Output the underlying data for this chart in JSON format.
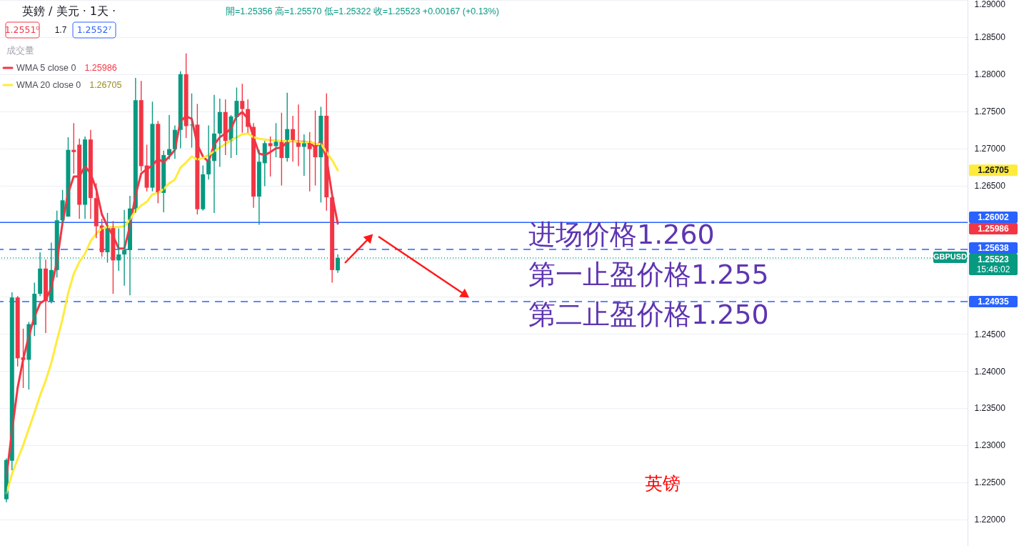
{
  "chart_data": {
    "type": "candlestick",
    "title": "英鎊 / 美元 · 1天 ·",
    "subtitle": "開=1.25356 高=1.25570 低=1.25322 收=1.25523 +0.00167 (+0.13%)",
    "categories": [
      null,
      null,
      null,
      null,
      null,
      null,
      null,
      null,
      null,
      null,
      null,
      null,
      null,
      null,
      null,
      null,
      null,
      null,
      null,
      null,
      null,
      null,
      null,
      null,
      null,
      null,
      null,
      null,
      null,
      null,
      null,
      null,
      null,
      null,
      null,
      null,
      null,
      null,
      null,
      null,
      null,
      null,
      null,
      null,
      null,
      null,
      null,
      null,
      null,
      null,
      null,
      null,
      null,
      null,
      null,
      null,
      null,
      null,
      null,
      null,
      null,
      null,
      null,
      null,
      null,
      null,
      null,
      null,
      null,
      null,
      null,
      null,
      null,
      null,
      null,
      null,
      null,
      null,
      null,
      null,
      null,
      null,
      null,
      null,
      null,
      null,
      null,
      null,
      null,
      null,
      null,
      null,
      null,
      null,
      null,
      null,
      null,
      null,
      null,
      null,
      null,
      null,
      null,
      null,
      null,
      null,
      null,
      null,
      null,
      null,
      null,
      null,
      null,
      null,
      null,
      null,
      null,
      null,
      null,
      null,
      null,
      null,
      null,
      null,
      null,
      null,
      null,
      null,
      null,
      null,
      null,
      null,
      null,
      null,
      null,
      null,
      null,
      null,
      null,
      null,
      null,
      null,
      null,
      null,
      null,
      null,
      null,
      null,
      null,
      null,
      null,
      null,
      null,
      null,
      null,
      null,
      null,
      null,
      null,
      null,
      null,
      null,
      null,
      null,
      null,
      null,
      null,
      null,
      null,
      null,
      null
    ],
    "ohlc": [
      [
        1.2227,
        1.2282,
        1.2223,
        1.228
      ],
      [
        1.2279,
        1.2506,
        1.2266,
        1.2499
      ],
      [
        1.2499,
        1.2501,
        1.2406,
        1.2417
      ],
      [
        1.2418,
        1.2457,
        1.2377,
        1.2415
      ],
      [
        1.2415,
        1.2466,
        1.2375,
        1.2463
      ],
      [
        1.2462,
        1.2519,
        1.2447,
        1.2504
      ],
      [
        1.2504,
        1.256,
        1.2501,
        1.2538
      ],
      [
        1.2538,
        1.255,
        1.2451,
        1.2494
      ],
      [
        1.2494,
        1.2573,
        1.2491,
        1.2536
      ],
      [
        1.2536,
        1.2616,
        1.2526,
        1.2603
      ],
      [
        1.2603,
        1.2644,
        1.26,
        1.263
      ],
      [
        1.2608,
        1.2715,
        1.2608,
        1.2698
      ],
      [
        1.2698,
        1.2734,
        1.2666,
        1.2695
      ],
      [
        1.2705,
        1.2713,
        1.2605,
        1.2624
      ],
      [
        1.2624,
        1.2716,
        1.2605,
        1.2712
      ],
      [
        1.2712,
        1.2725,
        1.2605,
        1.2633
      ],
      [
        1.2633,
        1.2653,
        1.2579,
        1.2595
      ],
      [
        1.2596,
        1.2605,
        1.2554,
        1.256
      ],
      [
        1.256,
        1.2613,
        1.2546,
        1.2594
      ],
      [
        1.2593,
        1.2602,
        1.2504,
        1.2549
      ],
      [
        1.2549,
        1.2592,
        1.2535,
        1.2557
      ],
      [
        1.2557,
        1.2617,
        1.2515,
        1.2563
      ],
      [
        1.2563,
        1.2636,
        1.2502,
        1.2619
      ],
      [
        1.2618,
        1.2795,
        1.2613,
        1.2765
      ],
      [
        1.2765,
        1.2791,
        1.2669,
        1.2676
      ],
      [
        1.2677,
        1.2705,
        1.2642,
        1.2647
      ],
      [
        1.2647,
        1.2763,
        1.2642,
        1.2733
      ],
      [
        1.2733,
        1.2737,
        1.2626,
        1.264
      ],
      [
        1.264,
        1.2697,
        1.2614,
        1.2691
      ],
      [
        1.2691,
        1.2745,
        1.2685,
        1.2699
      ],
      [
        1.2699,
        1.2731,
        1.2686,
        1.2725
      ],
      [
        1.2725,
        1.2804,
        1.27,
        1.28
      ],
      [
        1.28,
        1.2828,
        1.2714,
        1.273
      ],
      [
        1.2731,
        1.2774,
        1.2701,
        1.2732
      ],
      [
        1.2732,
        1.276,
        1.2611,
        1.2618
      ],
      [
        1.2618,
        1.2677,
        1.2616,
        1.2665
      ],
      [
        1.2665,
        1.2731,
        1.2658,
        1.2684
      ],
      [
        1.2683,
        1.2772,
        1.2613,
        1.272
      ],
      [
        1.272,
        1.2767,
        1.2675,
        1.2749
      ],
      [
        1.2749,
        1.2766,
        1.2691,
        1.271
      ],
      [
        1.271,
        1.2745,
        1.2687,
        1.2743
      ],
      [
        1.2742,
        1.2782,
        1.2691,
        1.2764
      ],
      [
        1.2764,
        1.2787,
        1.2721,
        1.2753
      ],
      [
        1.2753,
        1.2766,
        1.2721,
        1.2729
      ],
      [
        1.2729,
        1.2734,
        1.262,
        1.2635
      ],
      [
        1.2635,
        1.2698,
        1.2597,
        1.2682
      ],
      [
        1.268,
        1.271,
        1.2649,
        1.2707
      ],
      [
        1.2707,
        1.2716,
        1.2662,
        1.2703
      ],
      [
        1.2703,
        1.2734,
        1.2688,
        1.2709
      ],
      [
        1.2709,
        1.2748,
        1.265,
        1.2687
      ],
      [
        1.2687,
        1.2775,
        1.2682,
        1.2726
      ],
      [
        1.2726,
        1.2744,
        1.2682,
        1.2709
      ],
      [
        1.271,
        1.2759,
        1.2676,
        1.2702
      ],
      [
        1.2702,
        1.2719,
        1.2663,
        1.271
      ],
      [
        1.271,
        1.2722,
        1.2642,
        1.2699
      ],
      [
        1.2704,
        1.2751,
        1.265,
        1.2688
      ],
      [
        1.2688,
        1.2756,
        1.2627,
        1.2744
      ],
      [
        1.2744,
        1.2774,
        1.2616,
        1.2634
      ],
      [
        1.2634,
        1.2635,
        1.2519,
        1.2536
      ],
      [
        1.25356,
        1.2557,
        1.25322,
        1.25523
      ],
      null,
      null,
      null,
      null,
      null,
      null,
      null,
      null,
      null,
      null,
      null,
      null,
      null,
      null,
      null,
      null,
      null,
      null,
      null,
      null,
      null,
      null,
      null,
      null,
      null,
      null,
      null,
      null,
      null,
      null,
      null,
      null,
      null,
      null,
      null,
      null,
      null,
      null,
      null,
      null,
      null,
      null,
      null,
      null,
      null,
      null,
      null,
      null,
      null,
      null,
      null,
      null,
      null,
      null,
      null,
      null,
      null,
      null,
      null,
      null,
      null,
      null,
      null,
      null,
      null,
      null,
      null,
      null,
      null,
      null,
      null,
      null,
      null,
      null,
      null,
      null,
      null,
      null,
      null,
      null,
      null,
      null,
      null,
      null,
      null,
      null,
      null,
      null,
      null,
      null,
      null,
      null,
      null,
      null,
      null,
      null,
      null,
      null,
      null,
      null,
      null,
      null,
      null,
      null,
      null,
      null,
      null,
      null,
      null,
      null,
      null
    ],
    "colors": [
      "#089981",
      "#089981",
      "#f23645",
      "#f23645",
      "#089981",
      "#089981",
      "#089981",
      "#f23645",
      "#089981",
      "#089981",
      "#089981",
      "#089981",
      "#f23645",
      "#f23645",
      "#089981",
      "#f23645",
      "#f23645",
      "#f23645",
      "#089981",
      "#f23645",
      "#089981",
      "#089981",
      "#089981",
      "#089981",
      "#f23645",
      "#f23645",
      "#089981",
      "#f23645",
      "#089981",
      "#089981",
      "#089981",
      "#089981",
      "#f23645",
      "#089981",
      "#f23645",
      "#089981",
      "#089981",
      "#089981",
      "#089981",
      "#f23645",
      "#089981",
      "#089981",
      "#f23645",
      "#f23645",
      "#f23645",
      "#089981",
      "#089981",
      "#f23645",
      "#089981",
      "#f23645",
      "#089981",
      "#f23645",
      "#f23645",
      "#089981",
      "#f23645",
      "#f23645",
      "#089981",
      "#f23645",
      "#f23645",
      "#089981",
      null,
      null,
      null,
      null,
      null,
      null,
      null,
      null,
      null,
      null,
      null,
      null,
      null,
      null,
      null,
      null,
      null,
      null,
      null,
      null,
      null,
      null,
      null,
      null,
      null,
      null,
      null,
      null,
      null,
      null,
      null,
      null,
      null,
      null,
      null,
      null,
      null,
      null,
      null,
      null,
      null,
      null,
      null,
      null,
      null,
      null,
      null,
      null,
      null,
      null,
      null,
      null,
      null,
      null,
      null,
      null,
      null,
      null,
      null,
      null,
      null,
      null,
      null,
      null,
      null,
      null,
      null,
      null,
      null,
      null,
      null,
      null,
      null,
      null,
      null,
      null,
      null,
      null,
      null,
      null,
      null,
      null,
      null,
      null,
      null,
      null,
      null,
      null,
      null,
      null,
      null,
      null,
      null,
      null,
      null,
      null,
      null,
      null,
      null,
      null,
      null,
      null,
      null,
      null,
      null,
      null,
      null,
      null,
      null,
      null,
      null
    ],
    "series": [
      {
        "name": "WMA 5 close 0",
        "type": "line",
        "color": "#f23645",
        "values": [
          1.2257,
          1.2319,
          1.2377,
          1.2416,
          1.2447,
          1.2473,
          1.2491,
          1.2496,
          1.2512,
          1.2547,
          1.26,
          1.264,
          1.2662,
          1.2662,
          1.2676,
          1.2666,
          1.2645,
          1.2611,
          1.2595,
          1.2582,
          1.2565,
          1.2565,
          1.2595,
          1.2637,
          1.2666,
          1.2672,
          1.2677,
          1.2686,
          1.2681,
          1.2689,
          1.2698,
          1.2737,
          1.2743,
          1.274,
          1.2705,
          1.2689,
          1.2682,
          1.2705,
          1.2715,
          1.272,
          1.2727,
          1.2743,
          1.2749,
          1.274,
          1.2715,
          1.2693,
          1.2691,
          1.2695,
          1.27,
          1.2701,
          1.2709,
          1.271,
          1.2709,
          1.2709,
          1.2708,
          1.2701,
          1.271,
          1.2686,
          1.2637,
          1.25986,
          null,
          null,
          null,
          null,
          null,
          null,
          null,
          null,
          null,
          null,
          null,
          null,
          null,
          null,
          null,
          null,
          null,
          null,
          null,
          null,
          null,
          null,
          null,
          null,
          null,
          null,
          null,
          null,
          null,
          null,
          null,
          null,
          null,
          null,
          null,
          null,
          null,
          null,
          null,
          null,
          null,
          null,
          null,
          null,
          null,
          null,
          null,
          null,
          null,
          null,
          null,
          null,
          null,
          null,
          null,
          null,
          null,
          null,
          null,
          null,
          null,
          null,
          null,
          null,
          null,
          null,
          null,
          null,
          null,
          null,
          null,
          null,
          null,
          null,
          null,
          null,
          null,
          null,
          null,
          null,
          null,
          null,
          null,
          null,
          null,
          null,
          null,
          null,
          null,
          null,
          null,
          null,
          null,
          null,
          null,
          null,
          null,
          null,
          null,
          null,
          null,
          null,
          null,
          null,
          null,
          null,
          null,
          null,
          null,
          null,
          null
        ]
      },
      {
        "name": "WMA 20 close 0",
        "type": "line",
        "color": "#ffeb3b",
        "values": [
          1.2235,
          1.2261,
          1.2281,
          1.23,
          1.2322,
          1.2344,
          1.2367,
          1.2387,
          1.2411,
          1.2441,
          1.247,
          1.2505,
          1.2531,
          1.2547,
          1.2558,
          1.2575,
          1.2585,
          1.2592,
          1.2594,
          1.2594,
          1.2594,
          1.2595,
          1.2604,
          1.2616,
          1.2623,
          1.2628,
          1.2638,
          1.264,
          1.2645,
          1.2653,
          1.2658,
          1.2674,
          1.2681,
          1.2689,
          1.2685,
          1.2687,
          1.2691,
          1.2696,
          1.2701,
          1.2706,
          1.2711,
          1.2715,
          1.2719,
          1.272,
          1.2715,
          1.2713,
          1.2712,
          1.2711,
          1.2711,
          1.271,
          1.271,
          1.271,
          1.2709,
          1.2708,
          1.2709,
          1.2706,
          1.2706,
          1.2695,
          1.2684,
          1.26705,
          null,
          null,
          null,
          null,
          null,
          null,
          null,
          null,
          null,
          null,
          null,
          null,
          null,
          null,
          null,
          null,
          null,
          null,
          null,
          null,
          null,
          null,
          null,
          null,
          null,
          null,
          null,
          null,
          null,
          null,
          null,
          null,
          null,
          null,
          null,
          null,
          null,
          null,
          null,
          null,
          null,
          null,
          null,
          null,
          null,
          null,
          null,
          null,
          null,
          null,
          null,
          null,
          null,
          null,
          null,
          null,
          null,
          null,
          null,
          null,
          null,
          null,
          null,
          null,
          null,
          null,
          null,
          null,
          null,
          null,
          null,
          null,
          null,
          null,
          null,
          null,
          null,
          null,
          null,
          null,
          null,
          null,
          null,
          null,
          null,
          null,
          null,
          null,
          null,
          null,
          null,
          null,
          null,
          null,
          null,
          null,
          null,
          null,
          null,
          null,
          null,
          null,
          null,
          null,
          null,
          null,
          null,
          null,
          null,
          null,
          null
        ]
      }
    ],
    "ylim": [
      1.2164,
      1.29
    ],
    "yticks": [
      {
        "value": 1.22,
        "label": "1.22000"
      },
      {
        "value": 1.225,
        "label": "1.22500"
      },
      {
        "value": 1.23,
        "label": "1.23000"
      },
      {
        "value": 1.235,
        "label": "1.23500"
      },
      {
        "value": 1.24,
        "label": "1.24000"
      },
      {
        "value": 1.245,
        "label": "1.24500"
      },
      {
        "value": 1.25,
        "label": null
      },
      {
        "value": 1.255,
        "label": null
      },
      {
        "value": 1.26,
        "label": null
      },
      {
        "value": 1.265,
        "label": "1.26500"
      },
      {
        "value": 1.27,
        "label": "1.27000"
      },
      {
        "value": 1.275,
        "label": "1.27500"
      },
      {
        "value": 1.28,
        "label": "1.28000"
      },
      {
        "value": 1.285,
        "label": "1.28500"
      },
      {
        "value": 1.29,
        "label": "1.29000"
      }
    ],
    "tick_labels": "y",
    "grid": "y",
    "legend": "top left",
    "ref_lines": [
      {
        "axis": "y",
        "value": 1.26002,
        "label": "1.26002",
        "color": "#2962ff",
        "line_style": "solid"
      },
      {
        "axis": "y",
        "value": 1.25638,
        "label": "1.25638",
        "color": "#2962ff",
        "line_style": "dashed"
      },
      {
        "axis": "y",
        "value": 1.25523,
        "label": "1.25523",
        "color": "#089981",
        "line_style": "dotted"
      },
      {
        "axis": "y",
        "value": 1.24935,
        "label": "1.24935",
        "color": "#2962ff",
        "line_style": "dashed"
      }
    ],
    "annotations": [
      "1.2551⁰",
      "1.7",
      "1.2552⁷",
      "成交量",
      "GBPUSD",
      "15:46:02",
      "进场价格1.260",
      "第一止盈价格1.255",
      "第二止盈价格1.250",
      "英镑",
      "1.25986",
      "1.26705",
      "1.25986",
      "1.26705"
    ]
  }
}
